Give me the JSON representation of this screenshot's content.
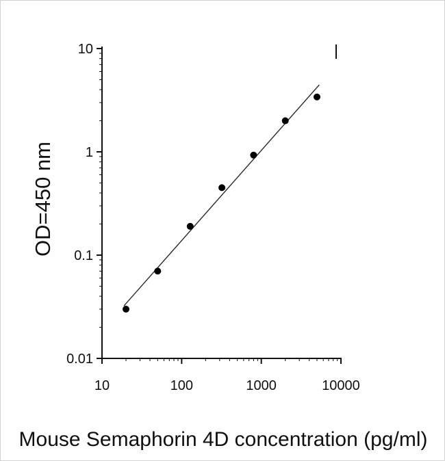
{
  "page": {
    "background": "#fefefe",
    "border_color": "#d2d2d2",
    "axis_color": "#111111",
    "text_color": "#101010"
  },
  "chart_data": {
    "type": "scatter",
    "title": "",
    "xlabel": "Mouse Semaphorin 4D concentration (pg/ml)",
    "ylabel": "OD=450 nm",
    "x_scale": "log",
    "y_scale": "log",
    "xlim": [
      10,
      10000
    ],
    "ylim": [
      0.01,
      10
    ],
    "x_ticks": [
      10,
      100,
      1000,
      10000
    ],
    "x_tick_labels": [
      "10",
      "100",
      "1000",
      "10000"
    ],
    "y_ticks": [
      0.01,
      0.1,
      1,
      10
    ],
    "y_tick_labels": [
      "0.01",
      "0.1",
      "1",
      "10"
    ],
    "grid": false,
    "legend": "none",
    "axis_color": "#111111",
    "series": [
      {
        "name": "standard-curve-points",
        "marker": "filled-circle",
        "marker_radius": 5,
        "color": "#000000",
        "x": [
          20,
          50,
          128,
          320,
          800,
          2000,
          5000
        ],
        "y": [
          0.03,
          0.07,
          0.19,
          0.45,
          0.93,
          2.0,
          3.4
        ]
      }
    ],
    "trendline": {
      "type": "linear-fit-loglog",
      "color": "#2a2a2a",
      "x_start": 19,
      "x_end": 5300
    }
  }
}
